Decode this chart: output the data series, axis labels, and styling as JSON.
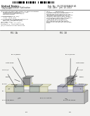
{
  "bg_color": "#ffffff",
  "page_bg": "#ffffff",
  "barcode_color": "#111111",
  "text_color": "#333333",
  "dark_gray": "#444444",
  "mid_gray": "#888888",
  "light_gray": "#bbbbbb",
  "substrate_color": "#c8c8c8",
  "gate_color": "#909090",
  "sd_color": "#b0b0b0",
  "sti_color": "#ddddd0",
  "silicide_color": "#a0a0a0",
  "diag_bg": "#eeeeee"
}
